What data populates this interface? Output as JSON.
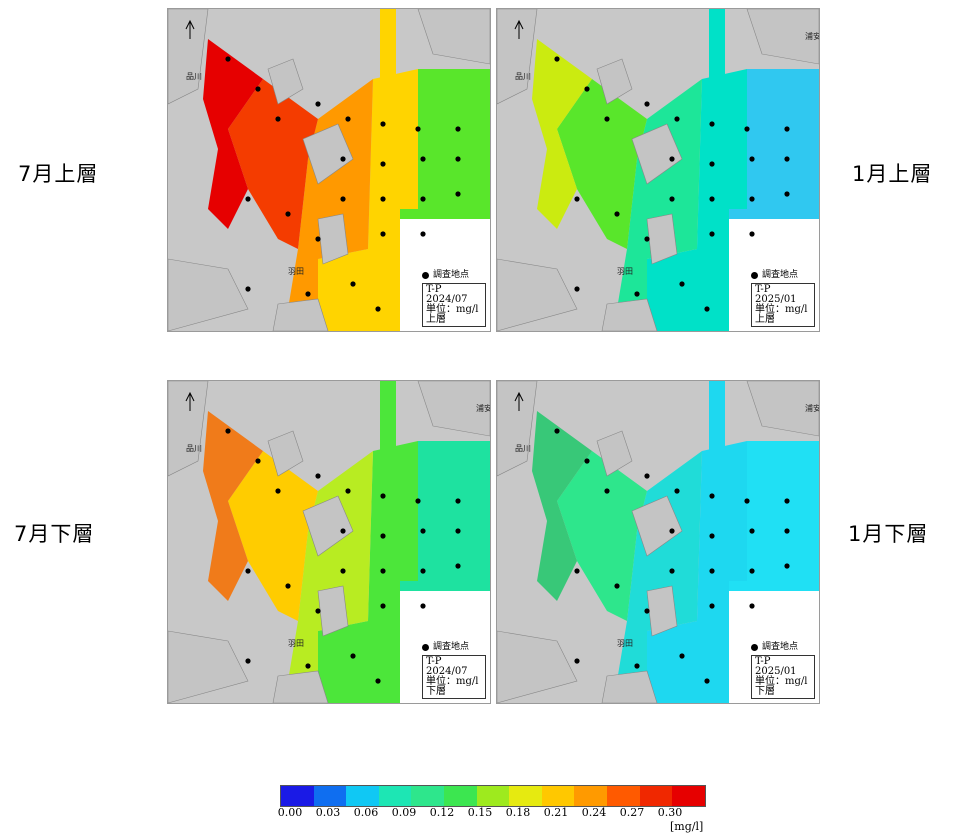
{
  "row_labels": {
    "top_left": "7月上層",
    "top_right": "1月上層",
    "bottom_left": "7月下層",
    "bottom_right": "1月下層"
  },
  "panels": [
    {
      "id": "p1",
      "param": "T-P",
      "date": "2024/07",
      "unit": "単位：mg/l",
      "layer": "上層",
      "legend_key": "調査地点",
      "place_labels": {
        "shinagawa": "品川",
        "haneda": "羽田"
      },
      "zone_colors": [
        "#e60000",
        "#f43c00",
        "#ff9900",
        "#ffd400",
        "#59e62b",
        "#ffffff"
      ]
    },
    {
      "id": "p2",
      "param": "T-P",
      "date": "2025/01",
      "unit": "単位：mg/l",
      "layer": "上層",
      "legend_key": "調査地点",
      "place_labels": {
        "shinagawa": "品川",
        "haneda": "羽田",
        "urayasu": "浦安市"
      },
      "zone_colors": [
        "#cbeb10",
        "#59e62b",
        "#1de699",
        "#00e1c8",
        "#30c8f0",
        "#ffffff"
      ]
    },
    {
      "id": "p3",
      "param": "T-P",
      "date": "2024/07",
      "unit": "単位：mg/l",
      "layer": "下層",
      "legend_key": "調査地点",
      "place_labels": {
        "shinagawa": "品川",
        "haneda": "羽田",
        "urayasu": "浦安市"
      },
      "zone_colors": [
        "#f07b1a",
        "#ffcc00",
        "#b8ec22",
        "#4ce63a",
        "#1ee2a0",
        "#ffffff"
      ]
    },
    {
      "id": "p4",
      "param": "T-P",
      "date": "2025/01",
      "unit": "単位：mg/l",
      "layer": "下層",
      "legend_key": "調査地点",
      "place_labels": {
        "shinagawa": "品川",
        "haneda": "羽田",
        "urayasu": "浦安市"
      },
      "zone_colors": [
        "#38c878",
        "#2ee68c",
        "#20dcd8",
        "#1ed8f0",
        "#20e0f4",
        "#ffffff"
      ]
    }
  ],
  "colorbar": {
    "colors": [
      "#1a1ae6",
      "#0f6ef0",
      "#10c8f4",
      "#1de6b4",
      "#2ee68c",
      "#3ce650",
      "#9eea1e",
      "#e6ea10",
      "#ffc800",
      "#ff9a00",
      "#ff5a00",
      "#f02800",
      "#e60000"
    ],
    "ticks": [
      "0.00",
      "0.03",
      "0.06",
      "0.09",
      "0.12",
      "0.15",
      "0.18",
      "0.21",
      "0.24",
      "0.27",
      "0.30"
    ],
    "unit": "[mg/l]"
  }
}
